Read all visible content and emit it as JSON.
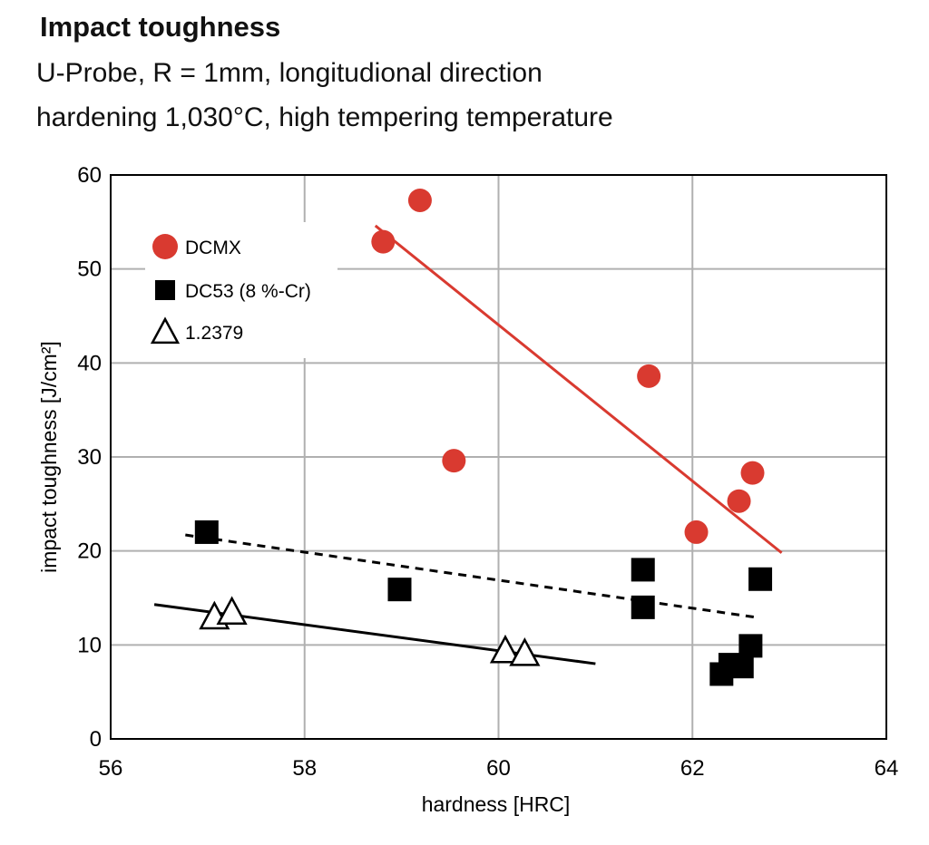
{
  "header": {
    "title": "Impact toughness",
    "subtitle_1": "U-Probe, R = 1mm, longitudional direction",
    "subtitle_2": "hardening 1,030°C, high tempering temperature"
  },
  "chart_data": {
    "type": "scatter",
    "xlabel": "hardness [HRC]",
    "ylabel": "impact toughness [J/cm²]",
    "xlim": [
      56,
      64
    ],
    "ylim": [
      0,
      60
    ],
    "xticks": [
      56,
      58,
      60,
      62,
      64
    ],
    "yticks": [
      0,
      10,
      20,
      30,
      40,
      50,
      60
    ],
    "grid": true,
    "legend_position": "top-left",
    "series": [
      {
        "name": "DCMX",
        "marker": "circle",
        "color": "#d93a30",
        "points": [
          [
            58.81,
            52.9
          ],
          [
            59.19,
            57.3
          ],
          [
            59.54,
            29.6
          ],
          [
            61.55,
            38.6
          ],
          [
            62.04,
            22.0
          ],
          [
            62.48,
            25.3
          ],
          [
            62.62,
            28.3
          ]
        ],
        "trend": {
          "style": "solid",
          "from": [
            58.73,
            54.6
          ],
          "to": [
            62.92,
            19.8
          ]
        }
      },
      {
        "name": "DC53 (8 %-Cr)",
        "marker": "square",
        "color": "#000000",
        "points": [
          [
            56.99,
            22.0
          ],
          [
            58.98,
            15.9
          ],
          [
            61.49,
            18.0
          ],
          [
            61.49,
            14.0
          ],
          [
            62.7,
            17.0
          ],
          [
            62.6,
            9.9
          ],
          [
            62.3,
            6.9
          ],
          [
            62.39,
            7.9
          ],
          [
            62.51,
            7.7
          ]
        ],
        "trend": {
          "style": "dashed",
          "from": [
            56.77,
            21.7
          ],
          "to": [
            62.68,
            12.9
          ]
        }
      },
      {
        "name": "1.2379",
        "marker": "triangle-open",
        "color": "#000000",
        "points": [
          [
            57.07,
            13.0
          ],
          [
            57.25,
            13.5
          ],
          [
            60.07,
            9.4
          ],
          [
            60.27,
            9.1
          ]
        ],
        "trend": {
          "style": "solid",
          "from": [
            56.45,
            14.3
          ],
          "to": [
            61.0,
            8.0
          ]
        }
      }
    ]
  }
}
